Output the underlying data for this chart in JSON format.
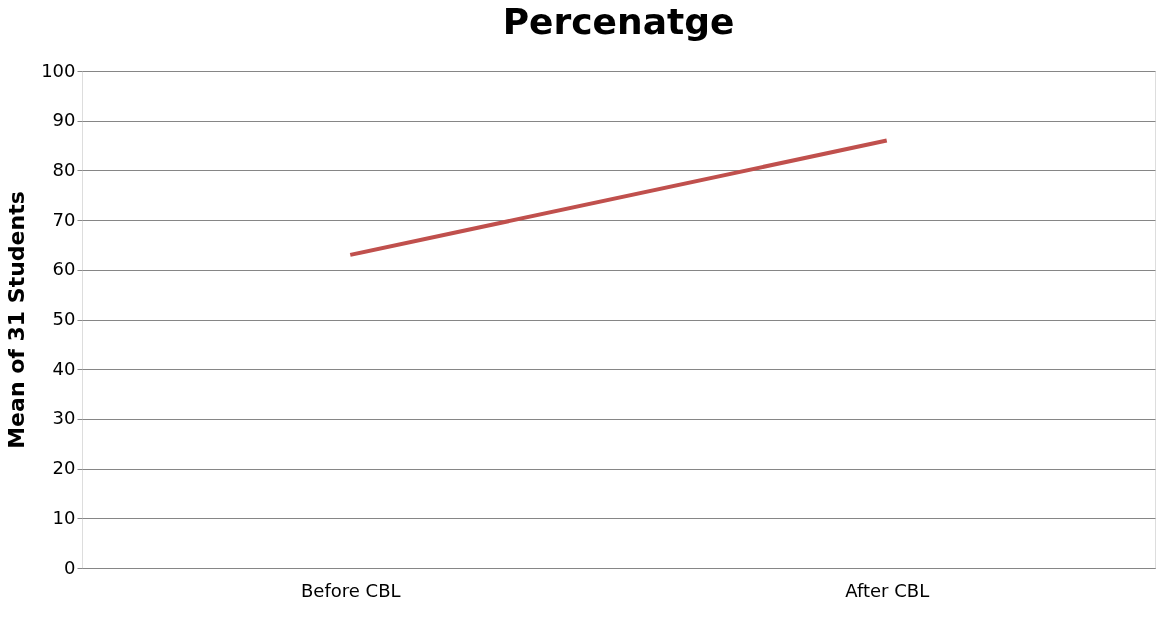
{
  "chart_data": {
    "type": "line",
    "title": "Percenatge",
    "ylabel": "Mean of 31 Students",
    "categories": [
      "Before CBL",
      "After CBL"
    ],
    "series": [
      {
        "color": "#c0504d",
        "values": [
          63,
          86
        ]
      }
    ],
    "ylim": [
      0,
      100
    ],
    "yticks": [
      0,
      10,
      20,
      30,
      40,
      50,
      60,
      70,
      80,
      90,
      100
    ],
    "grid": "y",
    "marker": "none",
    "line_style": "solid"
  }
}
